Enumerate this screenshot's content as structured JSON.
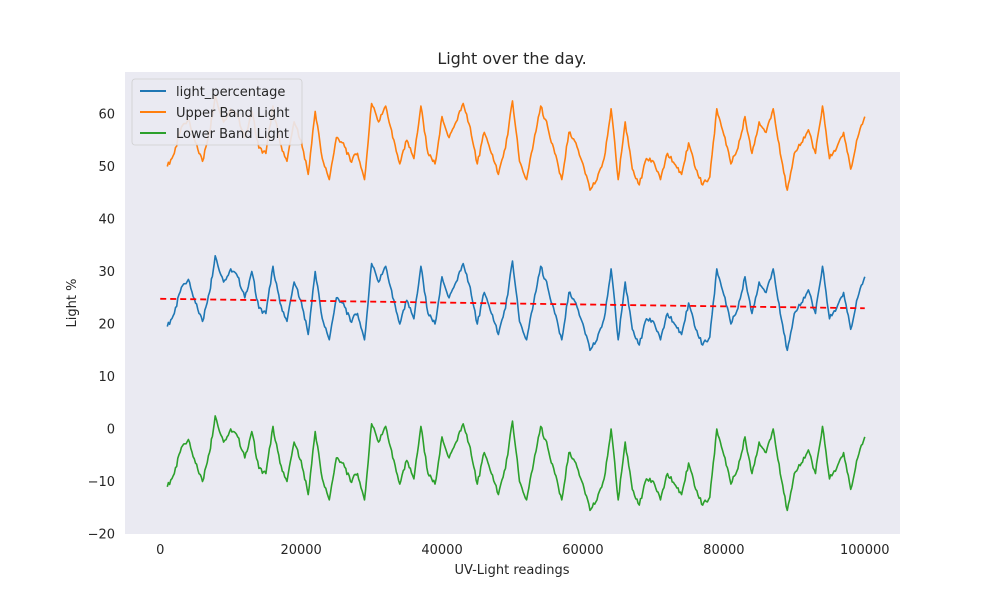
{
  "chart_data": {
    "type": "line",
    "title": "Light over the day.",
    "xlabel": "UV-Light readings",
    "ylabel": "Light %",
    "xlim": [
      -5000,
      105000
    ],
    "ylim": [
      -20,
      68
    ],
    "xticks": [
      0,
      20000,
      40000,
      60000,
      80000,
      100000
    ],
    "xtick_labels": [
      "0",
      "20000",
      "40000",
      "60000",
      "80000",
      "100000"
    ],
    "yticks": [
      -20,
      -10,
      0,
      10,
      20,
      30,
      40,
      50,
      60
    ],
    "ytick_labels": [
      "−20",
      "−10",
      "0",
      "10",
      "20",
      "30",
      "40",
      "50",
      "60"
    ],
    "grid": false,
    "legend_position": "top-left",
    "background": "#eaeaf2",
    "band_offset": 30.5,
    "x": [
      1000,
      2000,
      3000,
      4000,
      5000,
      6000,
      7000,
      7800,
      9000,
      10000,
      11000,
      12000,
      13000,
      14000,
      15000,
      16000,
      17000,
      18000,
      19000,
      20000,
      21000,
      22000,
      23000,
      24000,
      25000,
      26000,
      27000,
      28000,
      29000,
      30000,
      31000,
      32000,
      33000,
      34000,
      35000,
      36000,
      37000,
      38000,
      39000,
      40000,
      41000,
      42000,
      43000,
      44000,
      45000,
      46000,
      47000,
      48000,
      49000,
      50000,
      51000,
      52000,
      53000,
      54000,
      55000,
      56000,
      57000,
      58000,
      59000,
      60000,
      61000,
      62000,
      63000,
      64000,
      65000,
      66000,
      67000,
      68000,
      69000,
      70000,
      71000,
      72000,
      73000,
      74000,
      75000,
      76000,
      77000,
      78000,
      79000,
      80000,
      81000,
      82000,
      83000,
      84000,
      85000,
      86000,
      87000,
      88000,
      89000,
      90000,
      91000,
      92000,
      93000,
      94000,
      95000,
      96000,
      97000,
      98000,
      99000,
      100000
    ],
    "series": [
      {
        "name": "light_percentage",
        "color": "#1f77b4",
        "values": [
          19.5,
          22,
          27,
          28.5,
          24,
          20.5,
          26,
          33,
          28,
          30.5,
          29,
          25,
          30,
          23,
          22,
          31,
          24,
          20.5,
          28,
          24.5,
          18,
          30,
          21,
          17,
          25,
          24,
          20.5,
          22,
          17,
          31.5,
          28,
          31,
          25,
          20,
          24.5,
          21,
          31,
          22,
          20,
          29,
          25,
          28,
          31.5,
          27,
          20,
          26,
          22,
          18,
          23,
          32,
          20.5,
          17,
          24,
          31,
          27,
          22,
          17,
          26,
          24,
          20,
          15,
          17,
          21,
          30.5,
          17,
          28,
          19,
          16,
          21,
          20.5,
          17,
          22,
          20,
          18,
          24,
          19,
          16,
          17.5,
          30.5,
          25.5,
          20,
          23,
          29,
          22,
          28,
          26,
          30.5,
          22,
          15,
          22,
          24,
          26.5,
          22,
          31,
          21,
          23,
          26,
          19,
          25,
          29
        ]
      },
      {
        "name": "Upper Band Light",
        "color": "#ff7f0e",
        "values": [
          50,
          52.5,
          57.5,
          59,
          54.5,
          51,
          56.5,
          63.5,
          58.5,
          61,
          59.5,
          55.5,
          60.5,
          53.5,
          52.5,
          61.5,
          54.5,
          51,
          58.5,
          55,
          48.5,
          60.5,
          51.5,
          47.5,
          55.5,
          54.5,
          51,
          52.5,
          47.5,
          62,
          58.5,
          61.5,
          55.5,
          50.5,
          55,
          51.5,
          61.5,
          52.5,
          50.5,
          59.5,
          55.5,
          58.5,
          62,
          57.5,
          50.5,
          56.5,
          52.5,
          48.5,
          53.5,
          62.5,
          51,
          47.5,
          54.5,
          61.5,
          57.5,
          52.5,
          47.5,
          56.5,
          54.5,
          50.5,
          45.5,
          47.5,
          51.5,
          61,
          47.5,
          58.5,
          49.5,
          46.5,
          51.5,
          51,
          47.5,
          52.5,
          50.5,
          48.5,
          54.5,
          49.5,
          46.5,
          48,
          61,
          56,
          50.5,
          53.5,
          59.5,
          52.5,
          58.5,
          56.5,
          61,
          52.5,
          45.5,
          52.5,
          54.5,
          57,
          52.5,
          61.5,
          51.5,
          53.5,
          56.5,
          49.5,
          55.5,
          59.5
        ]
      },
      {
        "name": "Lower Band Light",
        "color": "#2ca02c",
        "values": [
          -11,
          -8.5,
          -3.5,
          -2,
          -6.5,
          -10,
          -4.5,
          2.5,
          -2.5,
          0,
          -1.5,
          -5.5,
          -0.5,
          -7.5,
          -8.5,
          0.5,
          -6.5,
          -10,
          -2.5,
          -6,
          -12.5,
          -0.5,
          -9.5,
          -13.5,
          -5.5,
          -6.5,
          -10,
          -8.5,
          -13.5,
          1,
          -2.5,
          0.5,
          -5.5,
          -10.5,
          -6,
          -9.5,
          0.5,
          -8.5,
          -10.5,
          -1.5,
          -5.5,
          -2.5,
          1,
          -3.5,
          -10.5,
          -4.5,
          -8.5,
          -12.5,
          -7.5,
          1.5,
          -10,
          -13.5,
          -6.5,
          0.5,
          -3.5,
          -8.5,
          -13.5,
          -4.5,
          -6.5,
          -10.5,
          -15.5,
          -13.5,
          -9.5,
          0,
          -13.5,
          -2.5,
          -11.5,
          -14.5,
          -9.5,
          -10,
          -13.5,
          -8.5,
          -10.5,
          -12.5,
          -6.5,
          -11.5,
          -14.5,
          -13,
          0,
          -5,
          -10.5,
          -7.5,
          -1.5,
          -8.5,
          -2.5,
          -4.5,
          0,
          -8.5,
          -15.5,
          -8.5,
          -6.5,
          -4,
          -8.5,
          0.5,
          -9.5,
          -7.5,
          -4.5,
          -11.5,
          -5.5,
          -1.5
        ]
      }
    ],
    "trend": {
      "color": "#ff0000",
      "style": "dashed",
      "x": [
        0,
        100000
      ],
      "y": [
        24.8,
        23
      ]
    }
  }
}
